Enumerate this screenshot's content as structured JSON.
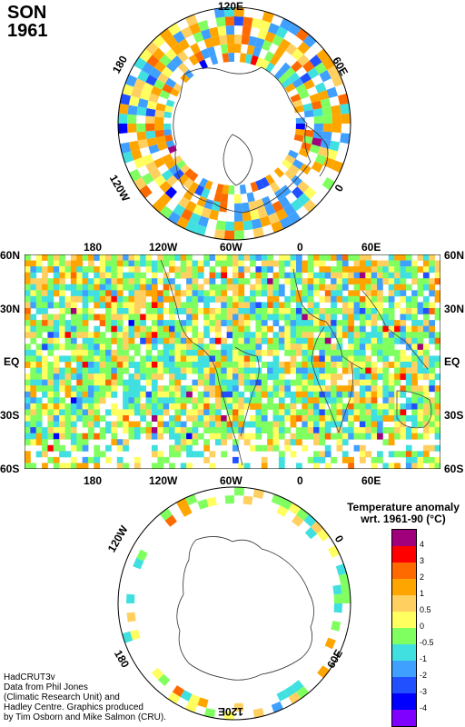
{
  "header": {
    "season": "SON",
    "year": "1961"
  },
  "north_polar_labels": {
    "top": "120E",
    "right": "60E",
    "right_low": "0",
    "left": "180",
    "left_low": "120W"
  },
  "main_map": {
    "top_lon_labels": [
      "180",
      "120W",
      "60W",
      "0",
      "60E"
    ],
    "bottom_lon_labels": [
      "180",
      "120W",
      "60W",
      "0",
      "60E"
    ],
    "left_lat_labels": [
      "60N",
      "30N",
      "EQ",
      "30S",
      "60S"
    ],
    "right_lat_labels": [
      "60N",
      "30N",
      "EQ",
      "30S",
      "60S"
    ]
  },
  "south_polar_labels": {
    "top_left": "120W",
    "top_right": "0",
    "bottom_left": "180",
    "bottom_right": "60E",
    "bottom": "120E"
  },
  "legend": {
    "title_line1": "Temperature anomaly",
    "title_line2": "wrt. 1961-90  (°C)",
    "ticks": [
      "4",
      "3",
      "2",
      "1",
      "0.5",
      "0",
      "-0.5",
      "-1",
      "-2",
      "-3",
      "-4"
    ],
    "colors": [
      "#a0007c",
      "#ff0000",
      "#ff6a00",
      "#ffa500",
      "#ffd060",
      "#ffff60",
      "#80ff60",
      "#40e0e0",
      "#40a0ff",
      "#2050ff",
      "#0000ff",
      "#8000ff"
    ]
  },
  "credits": {
    "line1": "HadCRUT3v",
    "line2": "Data from Phil Jones",
    "line3": "(Climatic Research Unit) and",
    "line4": "Hadley Centre.  Graphics produced",
    "line5": "by Tim Osborn and Mike Salmon (CRU)."
  }
}
